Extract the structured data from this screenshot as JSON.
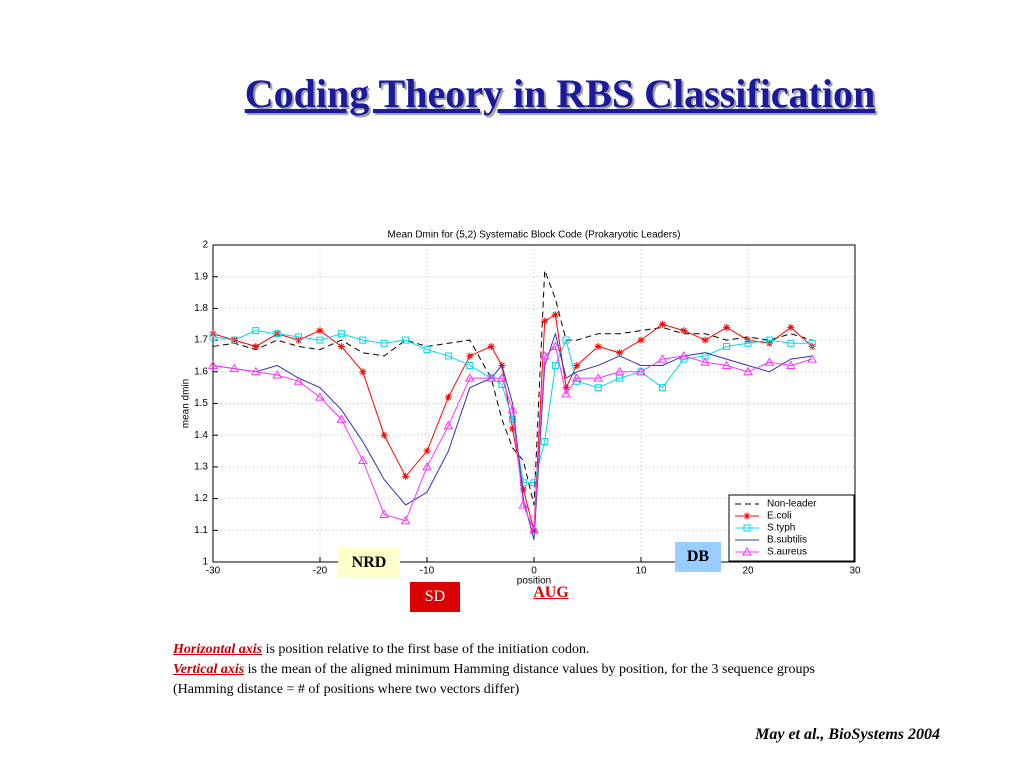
{
  "slide": {
    "title": "Coding Theory in RBS Classification",
    "labels": {
      "nrd": "NRD",
      "db": "DB",
      "sd": "SD",
      "aug": "AUG"
    },
    "caption": [
      {
        "lead": "Horizontal axis",
        "text": " is position relative to the first base of the initiation codon."
      },
      {
        "lead": "Vertical axis",
        "text": " is the mean of the aligned minimum Hamming distance values by position,  for the 3 sequence groups (Hamming distance = # of positions where two vectors differ)"
      }
    ],
    "citation": "May et al., BioSystems 2004"
  },
  "chart_data": {
    "type": "line",
    "title": "Mean Dmin for (5,2) Systematic Block Code (Prokaryotic Leaders)",
    "xlabel": "position",
    "ylabel": "mean dmin",
    "xlim": [
      -30,
      30
    ],
    "ylim": [
      1,
      2
    ],
    "xticks": [
      -30,
      -20,
      -10,
      0,
      10,
      20,
      30
    ],
    "yticks": [
      1,
      1.1,
      1.2,
      1.3,
      1.4,
      1.5,
      1.6,
      1.7,
      1.8,
      1.9,
      2
    ],
    "grid": true,
    "legend": "lower right",
    "x": [
      -30,
      -28,
      -26,
      -24,
      -22,
      -20,
      -18,
      -16,
      -14,
      -12,
      -10,
      -8,
      -6,
      -4,
      -3,
      -2,
      -1,
      0,
      1,
      2,
      3,
      4,
      6,
      8,
      10,
      12,
      14,
      16,
      18,
      20,
      22,
      24,
      26
    ],
    "series": [
      {
        "name": "Non-leader",
        "color": "#000000",
        "dash": true,
        "marker": "none",
        "values": [
          1.68,
          1.69,
          1.67,
          1.7,
          1.68,
          1.67,
          1.7,
          1.66,
          1.65,
          1.7,
          1.68,
          1.69,
          1.7,
          1.58,
          1.45,
          1.36,
          1.32,
          1.18,
          1.92,
          1.83,
          1.7,
          1.7,
          1.72,
          1.72,
          1.73,
          1.74,
          1.72,
          1.72,
          1.7,
          1.71,
          1.7,
          1.72,
          1.7
        ]
      },
      {
        "name": "E.coli",
        "color": "#ff0000",
        "dash": false,
        "marker": "star",
        "values": [
          1.72,
          1.7,
          1.68,
          1.72,
          1.7,
          1.73,
          1.68,
          1.6,
          1.4,
          1.27,
          1.35,
          1.52,
          1.65,
          1.68,
          1.62,
          1.42,
          1.23,
          1.1,
          1.76,
          1.78,
          1.55,
          1.62,
          1.68,
          1.66,
          1.7,
          1.75,
          1.73,
          1.7,
          1.74,
          1.7,
          1.69,
          1.74,
          1.68
        ]
      },
      {
        "name": "S.typh",
        "color": "#00d8e8",
        "dash": false,
        "marker": "square",
        "values": [
          1.71,
          1.7,
          1.73,
          1.72,
          1.71,
          1.7,
          1.72,
          1.7,
          1.69,
          1.7,
          1.67,
          1.65,
          1.62,
          1.58,
          1.56,
          1.45,
          1.25,
          1.25,
          1.38,
          1.62,
          1.7,
          1.57,
          1.55,
          1.58,
          1.6,
          1.55,
          1.64,
          1.65,
          1.68,
          1.69,
          1.7,
          1.69,
          1.69
        ]
      },
      {
        "name": "B.subtilis",
        "color": "#3030c0",
        "dash": false,
        "marker": "none",
        "values": [
          1.62,
          1.61,
          1.6,
          1.62,
          1.58,
          1.55,
          1.48,
          1.38,
          1.26,
          1.18,
          1.22,
          1.35,
          1.55,
          1.58,
          1.62,
          1.5,
          1.2,
          1.07,
          1.62,
          1.72,
          1.58,
          1.6,
          1.62,
          1.65,
          1.62,
          1.62,
          1.65,
          1.66,
          1.64,
          1.62,
          1.6,
          1.64,
          1.65
        ]
      },
      {
        "name": "S.aureus",
        "color": "#ff33ff",
        "dash": false,
        "marker": "triangle",
        "values": [
          1.62,
          1.61,
          1.6,
          1.59,
          1.57,
          1.52,
          1.45,
          1.32,
          1.15,
          1.13,
          1.3,
          1.43,
          1.58,
          1.58,
          1.58,
          1.48,
          1.18,
          1.1,
          1.65,
          1.68,
          1.53,
          1.58,
          1.58,
          1.6,
          1.6,
          1.64,
          1.65,
          1.63,
          1.62,
          1.6,
          1.63,
          1.62,
          1.64
        ]
      }
    ]
  }
}
